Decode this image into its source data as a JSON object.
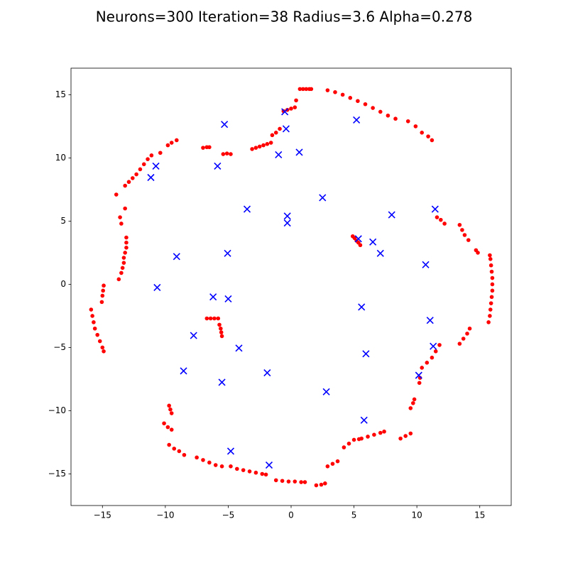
{
  "chart_data": {
    "type": "scatter",
    "title": "Neurons=300 Iteration=38 Radius=3.6 Alpha=0.278",
    "xlim": [
      -17.5,
      17.5
    ],
    "ylim": [
      -17.5,
      17.1
    ],
    "xticks": [
      {
        "value": -15,
        "label": "−15"
      },
      {
        "value": -10,
        "label": "−10"
      },
      {
        "value": -5,
        "label": "−5"
      },
      0,
      5,
      10,
      15
    ],
    "yticks": [
      {
        "value": -15,
        "label": "−15"
      },
      {
        "value": -10,
        "label": "−10"
      },
      {
        "value": -5,
        "label": "−5"
      },
      0,
      5,
      10,
      15
    ],
    "series": [
      {
        "color": "#ff0000",
        "marker": "o",
        "x": [
          0.7,
          0.95,
          1.2,
          1.45,
          1.6,
          0.4,
          -0.6,
          -0.3,
          0,
          0.3,
          -1.5,
          -1.2,
          -0.9,
          -3.1,
          -2.8,
          -2.5,
          -2.2,
          -1.9,
          -1.6,
          -5.4,
          -5.1,
          -4.8,
          -7.0,
          -6.7,
          -6.5,
          -13.9,
          -13.2,
          -12.9,
          -12.6,
          -12.3,
          -12.0,
          -11.7,
          -11.4,
          -11.1,
          -10.4,
          -9.8,
          -9.5,
          -9.1,
          -13.6,
          -13.5,
          -13.2,
          -13.1,
          -13.1,
          -13.1,
          -13.2,
          -13.3,
          -13.3,
          -13.4,
          -13.5,
          -13.7,
          -14.9,
          -14.95,
          -15.0,
          -15.05,
          -15.9,
          -15.8,
          -15.7,
          -15.6,
          -15.4,
          -15.2,
          -15.0,
          -14.9,
          -9.7,
          -9.6,
          -9.5,
          -10.1,
          -9.8,
          -9.5,
          -9.7,
          -9.3,
          -8.9,
          -8.5,
          -7.5,
          -7.0,
          -6.5,
          -6.0,
          -5.5,
          -4.8,
          -4.3,
          -3.8,
          -3.3,
          -2.8,
          -2.3,
          -2.0,
          -1.2,
          -0.7,
          -0.2,
          0.3,
          0.8,
          1.1,
          2.0,
          2.4,
          2.7,
          2.9,
          3.3,
          3.7,
          4.2,
          4.6,
          5.0,
          5.4,
          5.6,
          6.1,
          6.6,
          7.1,
          7.4,
          8.7,
          9.1,
          9.5,
          9.5,
          9.7,
          9.8,
          10.2,
          10.25,
          10.4,
          10.8,
          11.2,
          11.5,
          11.8,
          13.4,
          13.7,
          14.0,
          14.2,
          15.7,
          15.8,
          15.85,
          15.9,
          15.95,
          16.0,
          16.0,
          16.0,
          15.95,
          15.9,
          15.85,
          15.8,
          14.7,
          14.85,
          13.4,
          13.6,
          13.8,
          14.1,
          11.6,
          11.9,
          12.2,
          9.3,
          9.9,
          10.4,
          10.9,
          11.2,
          2.9,
          3.5,
          4.1,
          4.7,
          5.3,
          5.9,
          6.5,
          7.1,
          7.7,
          8.3,
          4.9,
          5.05,
          5.2,
          5.35,
          5.5,
          -6.7,
          -6.4,
          -6.1,
          -5.8,
          -5.7,
          -5.6,
          -5.55,
          -5.5
        ],
        "values": [
          15.45,
          15.45,
          15.45,
          15.45,
          15.45,
          14.55,
          13.7,
          13.8,
          13.9,
          14.0,
          11.8,
          12.0,
          12.3,
          10.7,
          10.8,
          10.9,
          11.0,
          11.1,
          11.2,
          10.3,
          10.35,
          10.3,
          10.8,
          10.85,
          10.85,
          7.1,
          7.8,
          8.1,
          8.4,
          8.7,
          9.1,
          9.5,
          9.9,
          10.2,
          10.4,
          11.0,
          11.2,
          11.4,
          5.3,
          4.8,
          6.0,
          3.7,
          3.3,
          2.9,
          2.5,
          2.1,
          1.7,
          1.3,
          0.9,
          0.4,
          -0.1,
          -0.5,
          -0.9,
          -1.4,
          -2.0,
          -2.5,
          -3.0,
          -3.5,
          -4.0,
          -4.5,
          -5.0,
          -5.3,
          -9.6,
          -9.9,
          -10.2,
          -11.0,
          -11.3,
          -11.5,
          -12.7,
          -13.0,
          -13.2,
          -13.5,
          -13.7,
          -13.9,
          -14.1,
          -14.3,
          -14.4,
          -14.4,
          -14.6,
          -14.7,
          -14.8,
          -14.9,
          -15.0,
          -15.05,
          -15.5,
          -15.55,
          -15.6,
          -15.6,
          -15.65,
          -15.65,
          -15.9,
          -15.85,
          -15.75,
          -14.4,
          -14.2,
          -14.0,
          -12.9,
          -12.6,
          -12.3,
          -12.25,
          -12.2,
          -12.05,
          -11.9,
          -11.75,
          -11.65,
          -12.2,
          -12.0,
          -11.8,
          -9.8,
          -9.4,
          -9.1,
          -7.8,
          -7.4,
          -6.6,
          -6.2,
          -5.8,
          -5.3,
          -4.8,
          -4.7,
          -4.3,
          -3.9,
          -3.5,
          -3.0,
          -2.5,
          -2.0,
          -1.5,
          -1.0,
          -0.5,
          0,
          0.5,
          1.0,
          1.5,
          2.0,
          2.3,
          2.7,
          2.5,
          4.7,
          4.3,
          3.9,
          3.5,
          5.3,
          5.1,
          4.8,
          12.9,
          12.5,
          12.0,
          11.7,
          11.4,
          15.35,
          15.2,
          15.0,
          14.75,
          14.5,
          14.25,
          13.95,
          13.65,
          13.35,
          13.1,
          3.8,
          3.65,
          3.45,
          3.3,
          3.1,
          -2.7,
          -2.7,
          -2.7,
          -2.7,
          -3.2,
          -3.5,
          -3.8,
          -4.1
        ]
      },
      {
        "color": "#0000ff",
        "marker": "x",
        "x": [
          -0.5,
          -5.3,
          -0.4,
          5.2,
          -1.0,
          0.65,
          -10.75,
          -11.15,
          -5.85,
          2.5,
          -3.5,
          -0.3,
          -0.3,
          8.0,
          11.45,
          5.35,
          6.5,
          7.1,
          -5.05,
          -9.1,
          10.7,
          -10.65,
          -6.2,
          -5.0,
          5.6,
          11.05,
          -7.75,
          -4.15,
          11.3,
          5.95,
          -8.55,
          -1.9,
          10.15,
          -5.5,
          2.8,
          5.8,
          -4.8,
          -1.75
        ],
        "values": [
          13.65,
          12.65,
          12.3,
          13.0,
          10.25,
          10.45,
          9.35,
          8.45,
          9.35,
          6.85,
          5.95,
          5.4,
          4.85,
          5.5,
          5.95,
          3.6,
          3.35,
          2.45,
          2.45,
          2.2,
          1.55,
          -0.25,
          -1.0,
          -1.15,
          -1.8,
          -2.85,
          -4.05,
          -5.05,
          -4.9,
          -5.5,
          -6.85,
          -7.0,
          -7.2,
          -7.75,
          -8.5,
          -10.75,
          -13.2,
          -14.3
        ]
      }
    ]
  }
}
